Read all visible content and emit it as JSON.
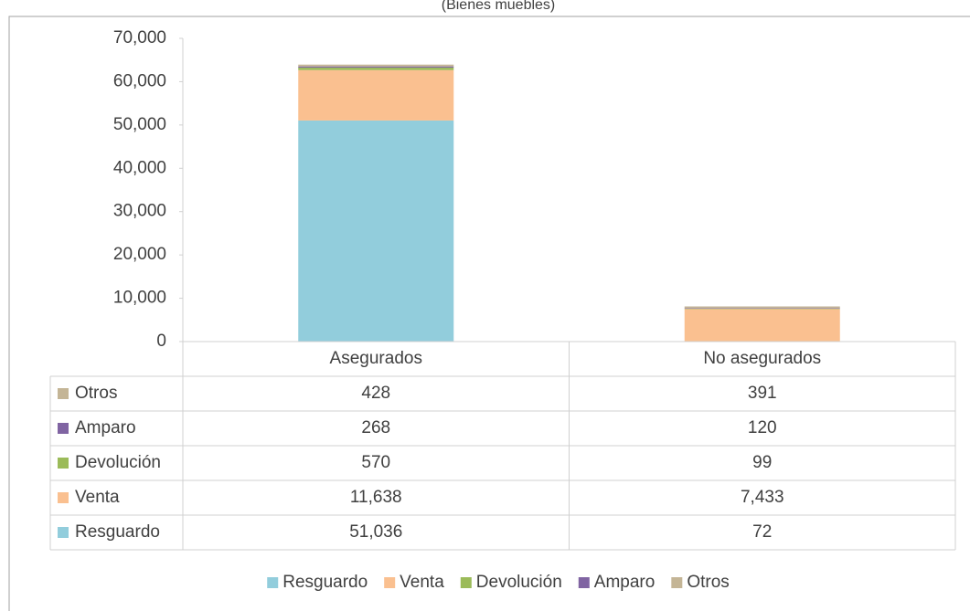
{
  "chart_data": {
    "type": "stacked_bar",
    "subtitle": "(Bienes muebles)",
    "categories": [
      "Asegurados",
      "No asegurados"
    ],
    "series": [
      {
        "name": "Resguardo",
        "color": "#92cddc",
        "values": [
          51036,
          72
        ],
        "value_labels": [
          "51,036",
          "72"
        ]
      },
      {
        "name": "Venta",
        "color": "#fac090",
        "values": [
          11638,
          7433
        ],
        "value_labels": [
          "11,638",
          "7,433"
        ]
      },
      {
        "name": "Devolución",
        "color": "#9bbb59",
        "values": [
          570,
          99
        ],
        "value_labels": [
          "570",
          "99"
        ]
      },
      {
        "name": "Amparo",
        "color": "#8064a2",
        "values": [
          268,
          120
        ],
        "value_labels": [
          "268",
          "120"
        ]
      },
      {
        "name": "Otros",
        "color": "#c4b596",
        "values": [
          428,
          391
        ],
        "value_labels": [
          "428",
          "391"
        ]
      }
    ],
    "ylim": [
      0,
      70000
    ],
    "yticks": [
      0,
      {
        "value": 10000,
        "label": "10,000"
      },
      {
        "value": 20000,
        "label": "20,000"
      },
      {
        "value": 30000,
        "label": "30,000"
      },
      {
        "value": 40000,
        "label": "40,000"
      },
      {
        "value": 50000,
        "label": "50,000"
      },
      {
        "value": 60000,
        "label": "60,000"
      },
      {
        "value": 70000,
        "label": "70,000"
      }
    ],
    "grid": false,
    "legend": "bottom"
  }
}
